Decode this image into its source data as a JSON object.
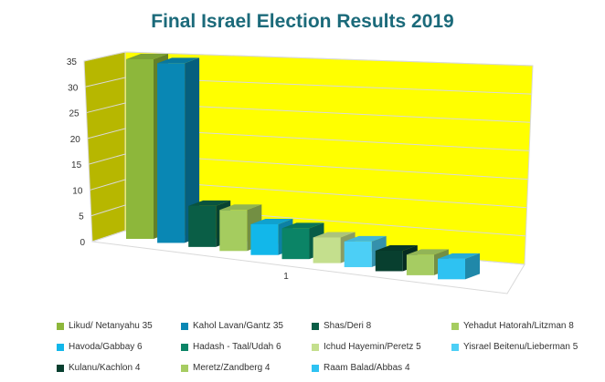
{
  "chart_data": {
    "type": "bar",
    "title": "Final Israel Election Results 2019",
    "categories": [
      "1"
    ],
    "ylim": [
      0,
      35
    ],
    "yticks": [
      0,
      5,
      10,
      15,
      20,
      25,
      30,
      35
    ],
    "grid": true,
    "legend_position": "bottom",
    "series": [
      {
        "name": "Likud/ Netanyahu 35",
        "values": [
          35
        ],
        "color": "#8DB73B"
      },
      {
        "name": "Kahol Lavan/Gantz 35",
        "values": [
          35
        ],
        "color": "#0987B4"
      },
      {
        "name": "Shas/Deri 8",
        "values": [
          8
        ],
        "color": "#0A5E46"
      },
      {
        "name": "Yehadut Hatorah/Litzman 8",
        "values": [
          8
        ],
        "color": "#A5CC5F"
      },
      {
        "name": "Havoda/Gabbay 6",
        "values": [
          6
        ],
        "color": "#12B7EA"
      },
      {
        "name": "Hadash - Taal/Udah 6",
        "values": [
          6
        ],
        "color": "#0B8466"
      },
      {
        "name": "Ichud Hayemin/Peretz 5",
        "values": [
          5
        ],
        "color": "#C4DF8D"
      },
      {
        "name": "Yisrael Beitenu/Lieberman 5",
        "values": [
          5
        ],
        "color": "#4CCFF6"
      },
      {
        "name": "Kulanu/Kachlon 4",
        "values": [
          4
        ],
        "color": "#083F2F"
      },
      {
        "name": "Meretz/Zandberg 4",
        "values": [
          4
        ],
        "color": "#A6CC62"
      },
      {
        "name": "Raam Balad/Abbas 4",
        "values": [
          4
        ],
        "color": "#2EC2F2"
      }
    ],
    "colors": {
      "back_wall": "#FFFF00",
      "side_wall": "#B7B700",
      "title": "#1B6A7A"
    }
  }
}
